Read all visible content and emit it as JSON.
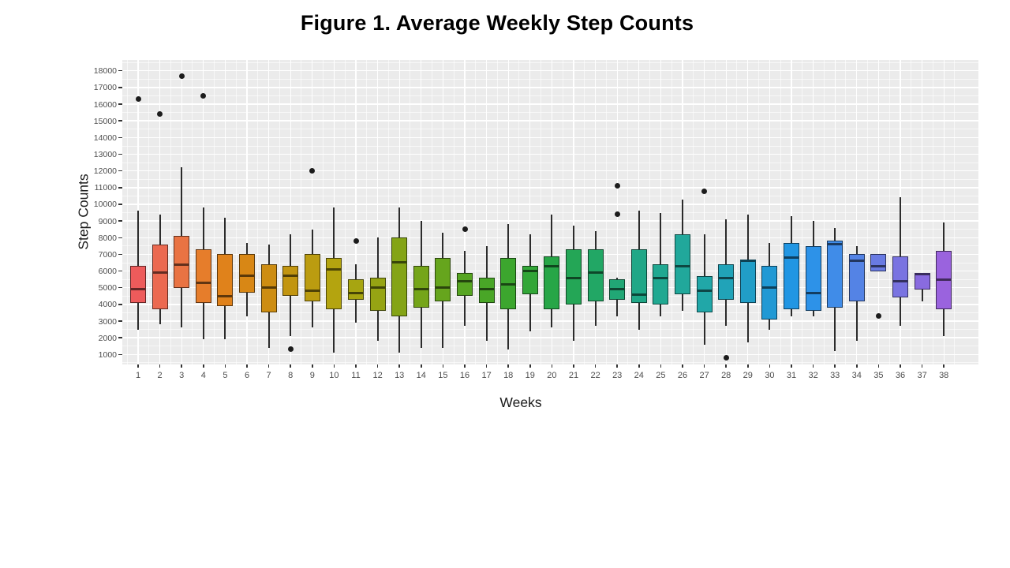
{
  "figure": {
    "caption_prefix": "Figure 1."
  },
  "chart_data": {
    "type": "boxplot",
    "title": "Figure 1. Average Weekly Step Counts",
    "xlabel": "Weeks",
    "ylabel": "Step Counts",
    "ylim": [
      400,
      18650
    ],
    "y_ticks": [
      18000,
      17000,
      16000,
      15000,
      14000,
      13000,
      12000,
      11000,
      10000,
      9000,
      8000,
      7000,
      6000,
      5000,
      4000,
      3000,
      2000,
      1000
    ],
    "minor_grid_step": 500,
    "grid": true,
    "legend": "none",
    "panel_bg": "#EBEBEB",
    "grid_color": "#FFFFFF",
    "outlier_color": "#1c1c1c",
    "categories": [
      1,
      2,
      3,
      4,
      5,
      6,
      7,
      8,
      9,
      10,
      11,
      12,
      13,
      14,
      15,
      16,
      17,
      18,
      19,
      20,
      21,
      22,
      23,
      24,
      25,
      26,
      27,
      28,
      29,
      30,
      31,
      32,
      33,
      34,
      35,
      36,
      37,
      38
    ],
    "series": [
      {
        "week": 1,
        "low": 2500,
        "q1": 4100,
        "median": 4900,
        "q3": 6300,
        "high": 9600,
        "outliers": [
          16300
        ],
        "fill": "#ED5B5B"
      },
      {
        "week": 2,
        "low": 2800,
        "q1": 3700,
        "median": 5900,
        "q3": 7600,
        "high": 9400,
        "outliers": [
          15400
        ],
        "fill": "#EB6950"
      },
      {
        "week": 3,
        "low": 2600,
        "q1": 5000,
        "median": 6400,
        "q3": 8100,
        "high": 12200,
        "outliers": [
          17700
        ],
        "fill": "#E97343"
      },
      {
        "week": 4,
        "low": 1900,
        "q1": 4100,
        "median": 5300,
        "q3": 7300,
        "high": 9800,
        "outliers": [
          16500
        ],
        "fill": "#E67D2B"
      },
      {
        "week": 5,
        "low": 1900,
        "q1": 3900,
        "median": 4500,
        "q3": 7000,
        "high": 9200,
        "outliers": [],
        "fill": "#E0821B"
      },
      {
        "week": 6,
        "low": 3300,
        "q1": 4700,
        "median": 5700,
        "q3": 7000,
        "high": 7700,
        "outliers": [],
        "fill": "#D88715"
      },
      {
        "week": 7,
        "low": 1400,
        "q1": 3500,
        "median": 5000,
        "q3": 6400,
        "high": 7600,
        "outliers": [],
        "fill": "#CD8D12"
      },
      {
        "week": 8,
        "low": 2100,
        "q1": 4500,
        "median": 5700,
        "q3": 6300,
        "high": 8200,
        "outliers": [
          1300
        ],
        "fill": "#C29510"
      },
      {
        "week": 9,
        "low": 2600,
        "q1": 4200,
        "median": 4800,
        "q3": 7000,
        "high": 8500,
        "outliers": [
          12000
        ],
        "fill": "#BB9C10"
      },
      {
        "week": 10,
        "low": 1100,
        "q1": 3700,
        "median": 6100,
        "q3": 6800,
        "high": 9800,
        "outliers": [],
        "fill": "#B4A40F"
      },
      {
        "week": 11,
        "low": 2900,
        "q1": 4300,
        "median": 4700,
        "q3": 5500,
        "high": 6400,
        "outliers": [
          7800
        ],
        "fill": "#A7A511"
      },
      {
        "week": 12,
        "low": 1800,
        "q1": 3600,
        "median": 5000,
        "q3": 5600,
        "high": 8000,
        "outliers": [],
        "fill": "#96A413"
      },
      {
        "week": 13,
        "low": 1100,
        "q1": 3300,
        "median": 6500,
        "q3": 8000,
        "high": 9800,
        "outliers": [],
        "fill": "#84A416"
      },
      {
        "week": 14,
        "low": 1400,
        "q1": 3800,
        "median": 4900,
        "q3": 6300,
        "high": 9000,
        "outliers": [],
        "fill": "#75A519"
      },
      {
        "week": 15,
        "low": 1400,
        "q1": 4200,
        "median": 5000,
        "q3": 6800,
        "high": 8300,
        "outliers": [],
        "fill": "#66A51D"
      },
      {
        "week": 16,
        "low": 2700,
        "q1": 4500,
        "median": 5400,
        "q3": 5900,
        "high": 7200,
        "outliers": [
          8500
        ],
        "fill": "#57A622"
      },
      {
        "week": 17,
        "low": 1800,
        "q1": 4100,
        "median": 4900,
        "q3": 5600,
        "high": 7500,
        "outliers": [],
        "fill": "#49A627"
      },
      {
        "week": 18,
        "low": 1300,
        "q1": 3700,
        "median": 5200,
        "q3": 6800,
        "high": 8800,
        "outliers": [],
        "fill": "#3CA62E"
      },
      {
        "week": 19,
        "low": 2400,
        "q1": 4600,
        "median": 6000,
        "q3": 6300,
        "high": 8200,
        "outliers": [],
        "fill": "#32A637"
      },
      {
        "week": 20,
        "low": 2600,
        "q1": 3700,
        "median": 6300,
        "q3": 6900,
        "high": 9400,
        "outliers": [],
        "fill": "#27A647"
      },
      {
        "week": 21,
        "low": 1800,
        "q1": 4000,
        "median": 5600,
        "q3": 7300,
        "high": 8700,
        "outliers": [],
        "fill": "#24A656"
      },
      {
        "week": 22,
        "low": 2700,
        "q1": 4200,
        "median": 5900,
        "q3": 7300,
        "high": 8400,
        "outliers": [],
        "fill": "#22A765"
      },
      {
        "week": 23,
        "low": 3300,
        "q1": 4300,
        "median": 4900,
        "q3": 5500,
        "high": 5600,
        "outliers": [
          11100,
          9400
        ],
        "fill": "#21A775"
      },
      {
        "week": 24,
        "low": 2500,
        "q1": 4100,
        "median": 4600,
        "q3": 7300,
        "high": 9600,
        "outliers": [],
        "fill": "#20A787"
      },
      {
        "week": 25,
        "low": 3300,
        "q1": 4000,
        "median": 5600,
        "q3": 6400,
        "high": 9500,
        "outliers": [],
        "fill": "#20A891"
      },
      {
        "week": 26,
        "low": 3600,
        "q1": 4600,
        "median": 6300,
        "q3": 8200,
        "high": 10300,
        "outliers": [],
        "fill": "#21A89B"
      },
      {
        "week": 27,
        "low": 1600,
        "q1": 3500,
        "median": 4800,
        "q3": 5700,
        "high": 8200,
        "outliers": [
          10800
        ],
        "fill": "#21A7A8"
      },
      {
        "week": 28,
        "low": 2700,
        "q1": 4300,
        "median": 5600,
        "q3": 6400,
        "high": 9100,
        "outliers": [
          800
        ],
        "fill": "#21A3B8"
      },
      {
        "week": 29,
        "low": 1700,
        "q1": 4100,
        "median": 6600,
        "q3": 6700,
        "high": 9400,
        "outliers": [],
        "fill": "#219EC7"
      },
      {
        "week": 30,
        "low": 2500,
        "q1": 3100,
        "median": 5000,
        "q3": 6300,
        "high": 7700,
        "outliers": [],
        "fill": "#2199D4"
      },
      {
        "week": 31,
        "low": 3300,
        "q1": 3700,
        "median": 6800,
        "q3": 7700,
        "high": 9300,
        "outliers": [],
        "fill": "#2196E3"
      },
      {
        "week": 32,
        "low": 3300,
        "q1": 3600,
        "median": 4700,
        "q3": 7500,
        "high": 9000,
        "outliers": [],
        "fill": "#2D92E8"
      },
      {
        "week": 33,
        "low": 1200,
        "q1": 3800,
        "median": 7600,
        "q3": 7800,
        "high": 8600,
        "outliers": [],
        "fill": "#408CE8"
      },
      {
        "week": 34,
        "low": 1800,
        "q1": 4200,
        "median": 6600,
        "q3": 7000,
        "high": 7500,
        "outliers": [],
        "fill": "#5483E5"
      },
      {
        "week": 35,
        "low": 6000,
        "q1": 6000,
        "median": 6300,
        "q3": 7000,
        "high": 7000,
        "outliers": [
          3300
        ],
        "fill": "#697BE3"
      },
      {
        "week": 36,
        "low": 2700,
        "q1": 4400,
        "median": 5400,
        "q3": 6900,
        "high": 10400,
        "outliers": [],
        "fill": "#7973E1"
      },
      {
        "week": 37,
        "low": 4200,
        "q1": 4900,
        "median": 5800,
        "q3": 5900,
        "high": 5900,
        "outliers": [],
        "fill": "#896BDF"
      },
      {
        "week": 38,
        "low": 2100,
        "q1": 3700,
        "median": 5500,
        "q3": 7200,
        "high": 8900,
        "outliers": [],
        "fill": "#9A63DE"
      }
    ]
  }
}
